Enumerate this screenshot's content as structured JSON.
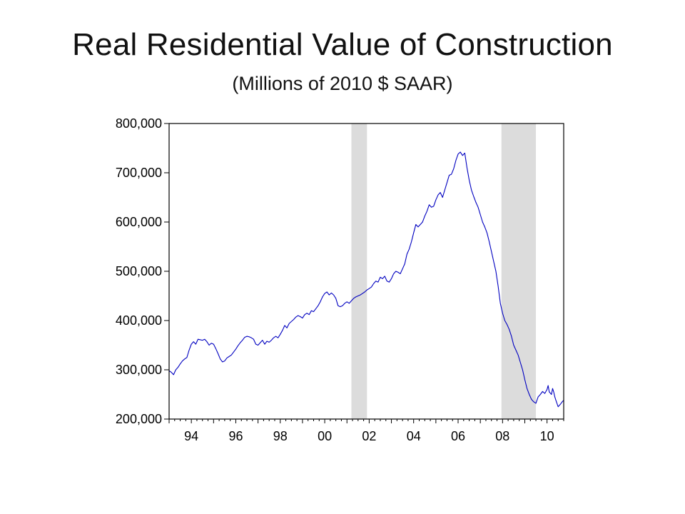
{
  "title": "Real Residential Value of Construction",
  "subtitle": "(Millions of 2010 $ SAAR)",
  "chart_data": {
    "type": "line",
    "title": "Real Residential Value of Construction",
    "subtitle": "(Millions of 2010 $ SAAR)",
    "xlabel": "",
    "ylabel": "",
    "xlim": [
      1993.0,
      2010.75
    ],
    "ylim": [
      200000,
      800000
    ],
    "y_ticks": [
      200000,
      300000,
      400000,
      500000,
      600000,
      700000,
      800000
    ],
    "y_tick_labels": [
      "200,000",
      "300,000",
      "400,000",
      "500,000",
      "600,000",
      "700,000",
      "800,000"
    ],
    "x_tick_labels": [
      {
        "x": 1994,
        "label": "94"
      },
      {
        "x": 1996,
        "label": "96"
      },
      {
        "x": 1998,
        "label": "98"
      },
      {
        "x": 2000,
        "label": "00"
      },
      {
        "x": 2002,
        "label": "02"
      },
      {
        "x": 2004,
        "label": "04"
      },
      {
        "x": 2006,
        "label": "06"
      },
      {
        "x": 2008,
        "label": "08"
      },
      {
        "x": 2010,
        "label": "10"
      }
    ],
    "grid": false,
    "legend": "none",
    "colors": {
      "line": "#0000c0",
      "recession": "#dcdcdc",
      "axis": "#000000"
    },
    "recession_bands": [
      [
        2001.2,
        2001.9
      ],
      [
        2007.95,
        2009.5
      ]
    ],
    "series": [
      {
        "points": [
          [
            1993.0,
            298000
          ],
          [
            1993.1,
            295000
          ],
          [
            1993.2,
            290000
          ],
          [
            1993.3,
            300000
          ],
          [
            1993.4,
            305000
          ],
          [
            1993.5,
            312000
          ],
          [
            1993.6,
            318000
          ],
          [
            1993.7,
            322000
          ],
          [
            1993.8,
            325000
          ],
          [
            1993.9,
            340000
          ],
          [
            1994.0,
            352000
          ],
          [
            1994.1,
            357000
          ],
          [
            1994.2,
            352000
          ],
          [
            1994.3,
            362000
          ],
          [
            1994.4,
            361000
          ],
          [
            1994.5,
            360000
          ],
          [
            1994.6,
            362000
          ],
          [
            1994.7,
            357000
          ],
          [
            1994.8,
            350000
          ],
          [
            1994.9,
            354000
          ],
          [
            1995.0,
            352000
          ],
          [
            1995.1,
            343000
          ],
          [
            1995.2,
            333000
          ],
          [
            1995.3,
            322000
          ],
          [
            1995.4,
            316000
          ],
          [
            1995.5,
            318000
          ],
          [
            1995.6,
            324000
          ],
          [
            1995.7,
            327000
          ],
          [
            1995.8,
            330000
          ],
          [
            1995.9,
            336000
          ],
          [
            1996.0,
            342000
          ],
          [
            1996.1,
            349000
          ],
          [
            1996.2,
            355000
          ],
          [
            1996.3,
            360000
          ],
          [
            1996.4,
            366000
          ],
          [
            1996.5,
            368000
          ],
          [
            1996.6,
            367000
          ],
          [
            1996.7,
            365000
          ],
          [
            1996.8,
            362000
          ],
          [
            1996.9,
            352000
          ],
          [
            1997.0,
            350000
          ],
          [
            1997.1,
            355000
          ],
          [
            1997.2,
            360000
          ],
          [
            1997.3,
            352000
          ],
          [
            1997.4,
            358000
          ],
          [
            1997.5,
            356000
          ],
          [
            1997.6,
            360000
          ],
          [
            1997.7,
            365000
          ],
          [
            1997.8,
            368000
          ],
          [
            1997.9,
            365000
          ],
          [
            1998.0,
            372000
          ],
          [
            1998.1,
            380000
          ],
          [
            1998.2,
            390000
          ],
          [
            1998.3,
            385000
          ],
          [
            1998.4,
            394000
          ],
          [
            1998.5,
            398000
          ],
          [
            1998.6,
            402000
          ],
          [
            1998.7,
            407000
          ],
          [
            1998.8,
            410000
          ],
          [
            1998.9,
            408000
          ],
          [
            1999.0,
            405000
          ],
          [
            1999.1,
            412000
          ],
          [
            1999.2,
            415000
          ],
          [
            1999.3,
            412000
          ],
          [
            1999.4,
            420000
          ],
          [
            1999.5,
            418000
          ],
          [
            1999.6,
            424000
          ],
          [
            1999.7,
            430000
          ],
          [
            1999.8,
            438000
          ],
          [
            1999.9,
            448000
          ],
          [
            2000.0,
            455000
          ],
          [
            2000.1,
            458000
          ],
          [
            2000.2,
            452000
          ],
          [
            2000.3,
            456000
          ],
          [
            2000.4,
            452000
          ],
          [
            2000.5,
            445000
          ],
          [
            2000.6,
            430000
          ],
          [
            2000.7,
            428000
          ],
          [
            2000.8,
            430000
          ],
          [
            2000.9,
            435000
          ],
          [
            2001.0,
            438000
          ],
          [
            2001.1,
            435000
          ],
          [
            2001.2,
            440000
          ],
          [
            2001.3,
            445000
          ],
          [
            2001.4,
            448000
          ],
          [
            2001.5,
            450000
          ],
          [
            2001.6,
            452000
          ],
          [
            2001.7,
            455000
          ],
          [
            2001.8,
            458000
          ],
          [
            2001.9,
            462000
          ],
          [
            2002.0,
            465000
          ],
          [
            2002.1,
            468000
          ],
          [
            2002.2,
            475000
          ],
          [
            2002.3,
            480000
          ],
          [
            2002.4,
            478000
          ],
          [
            2002.5,
            488000
          ],
          [
            2002.6,
            485000
          ],
          [
            2002.7,
            490000
          ],
          [
            2002.8,
            480000
          ],
          [
            2002.9,
            478000
          ],
          [
            2003.0,
            485000
          ],
          [
            2003.1,
            495000
          ],
          [
            2003.2,
            500000
          ],
          [
            2003.3,
            498000
          ],
          [
            2003.4,
            495000
          ],
          [
            2003.5,
            505000
          ],
          [
            2003.6,
            515000
          ],
          [
            2003.7,
            535000
          ],
          [
            2003.8,
            545000
          ],
          [
            2003.9,
            560000
          ],
          [
            2004.0,
            578000
          ],
          [
            2004.1,
            595000
          ],
          [
            2004.2,
            590000
          ],
          [
            2004.3,
            595000
          ],
          [
            2004.4,
            600000
          ],
          [
            2004.5,
            612000
          ],
          [
            2004.6,
            622000
          ],
          [
            2004.7,
            635000
          ],
          [
            2004.8,
            630000
          ],
          [
            2004.9,
            632000
          ],
          [
            2005.0,
            645000
          ],
          [
            2005.1,
            655000
          ],
          [
            2005.2,
            660000
          ],
          [
            2005.3,
            650000
          ],
          [
            2005.4,
            665000
          ],
          [
            2005.5,
            680000
          ],
          [
            2005.6,
            695000
          ],
          [
            2005.7,
            697000
          ],
          [
            2005.8,
            708000
          ],
          [
            2005.9,
            725000
          ],
          [
            2006.0,
            738000
          ],
          [
            2006.1,
            742000
          ],
          [
            2006.2,
            735000
          ],
          [
            2006.3,
            740000
          ],
          [
            2006.4,
            710000
          ],
          [
            2006.5,
            685000
          ],
          [
            2006.6,
            665000
          ],
          [
            2006.7,
            652000
          ],
          [
            2006.8,
            640000
          ],
          [
            2006.9,
            630000
          ],
          [
            2007.0,
            615000
          ],
          [
            2007.1,
            600000
          ],
          [
            2007.2,
            590000
          ],
          [
            2007.3,
            578000
          ],
          [
            2007.4,
            560000
          ],
          [
            2007.5,
            540000
          ],
          [
            2007.6,
            520000
          ],
          [
            2007.7,
            500000
          ],
          [
            2007.8,
            470000
          ],
          [
            2007.9,
            435000
          ],
          [
            2008.0,
            415000
          ],
          [
            2008.1,
            400000
          ],
          [
            2008.2,
            392000
          ],
          [
            2008.3,
            382000
          ],
          [
            2008.4,
            368000
          ],
          [
            2008.5,
            350000
          ],
          [
            2008.6,
            340000
          ],
          [
            2008.7,
            330000
          ],
          [
            2008.8,
            315000
          ],
          [
            2008.9,
            300000
          ],
          [
            2009.0,
            280000
          ],
          [
            2009.1,
            262000
          ],
          [
            2009.2,
            250000
          ],
          [
            2009.3,
            240000
          ],
          [
            2009.4,
            235000
          ],
          [
            2009.5,
            232000
          ],
          [
            2009.6,
            245000
          ],
          [
            2009.7,
            250000
          ],
          [
            2009.8,
            256000
          ],
          [
            2009.9,
            252000
          ],
          [
            2010.0,
            260000
          ],
          [
            2010.05,
            268000
          ],
          [
            2010.1,
            255000
          ],
          [
            2010.2,
            250000
          ],
          [
            2010.25,
            262000
          ],
          [
            2010.3,
            255000
          ],
          [
            2010.35,
            245000
          ],
          [
            2010.4,
            238000
          ],
          [
            2010.5,
            225000
          ],
          [
            2010.6,
            230000
          ],
          [
            2010.7,
            236000
          ],
          [
            2010.75,
            238000
          ]
        ]
      }
    ]
  }
}
